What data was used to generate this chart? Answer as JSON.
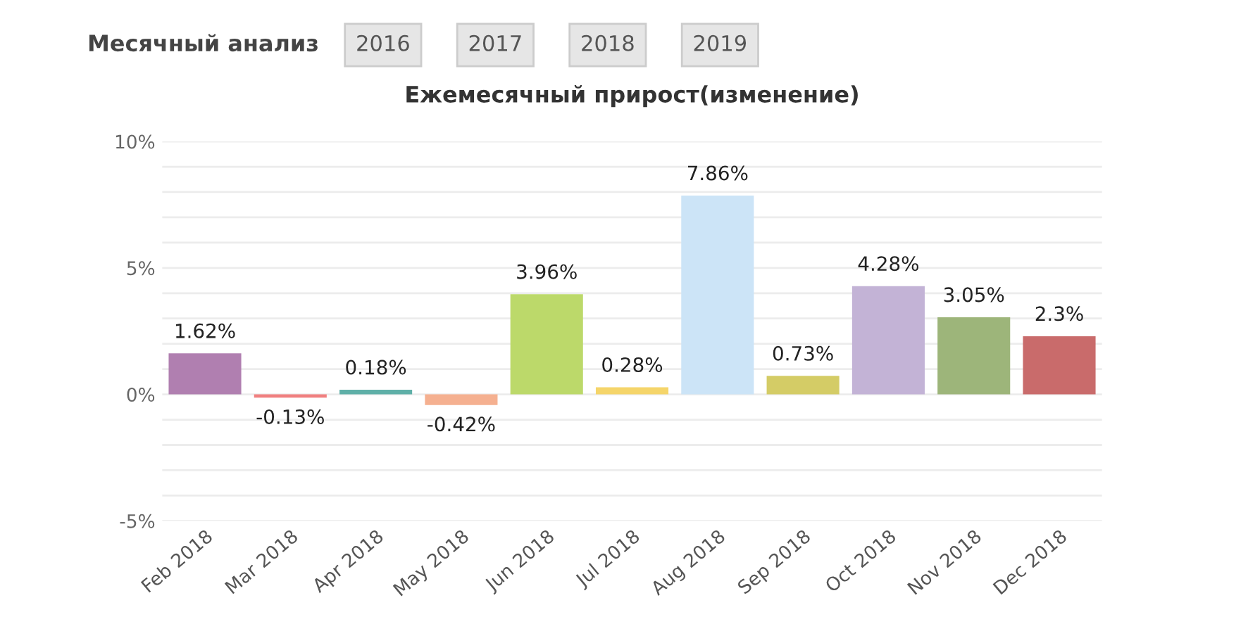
{
  "chart_data": {
    "type": "bar",
    "title": "Ежемесячный прирост(изменение)",
    "annotations": [
      "Месячный анализ",
      "2016",
      "2017",
      "2018",
      "2019"
    ],
    "categories": [
      "Feb 2018",
      "Mar 2018",
      "Apr 2018",
      "May 2018",
      "Jun 2018",
      "Jul 2018",
      "Aug 2018",
      "Sep 2018",
      "Oct 2018",
      "Nov 2018",
      "Dec 2018"
    ],
    "values": [
      1.62,
      -0.13,
      0.18,
      -0.42,
      3.96,
      0.28,
      7.86,
      0.73,
      4.28,
      3.05,
      2.3
    ],
    "value_labels": [
      "1.62%",
      "-0.13%",
      "0.18%",
      "-0.42%",
      "3.96%",
      "0.28%",
      "7.86%",
      "0.73%",
      "4.28%",
      "3.05%",
      "2.3%"
    ],
    "colors": [
      "#b07fb0",
      "#f08080",
      "#5fb0a8",
      "#f5b090",
      "#bcd96a",
      "#f5d56a",
      "#cce4f7",
      "#d4cc66",
      "#c3b3d6",
      "#9db57a",
      "#c96b6b"
    ],
    "ylim": [
      -5,
      10
    ],
    "yticks": [
      {
        "value": -5,
        "label": "-5%"
      },
      {
        "value": -4,
        "label": null
      },
      {
        "value": -3,
        "label": null
      },
      {
        "value": -2,
        "label": null
      },
      {
        "value": -1,
        "label": null
      },
      {
        "value": 0,
        "label": "0%"
      },
      {
        "value": 1,
        "label": null
      },
      {
        "value": 2,
        "label": null
      },
      {
        "value": 3,
        "label": null
      },
      {
        "value": 4,
        "label": null
      },
      {
        "value": 5,
        "label": "5%"
      },
      {
        "value": 6,
        "label": null
      },
      {
        "value": 7,
        "label": null
      },
      {
        "value": 8,
        "label": null
      },
      {
        "value": 9,
        "label": null
      },
      {
        "value": 10,
        "label": "10%"
      }
    ],
    "grid": "y"
  }
}
